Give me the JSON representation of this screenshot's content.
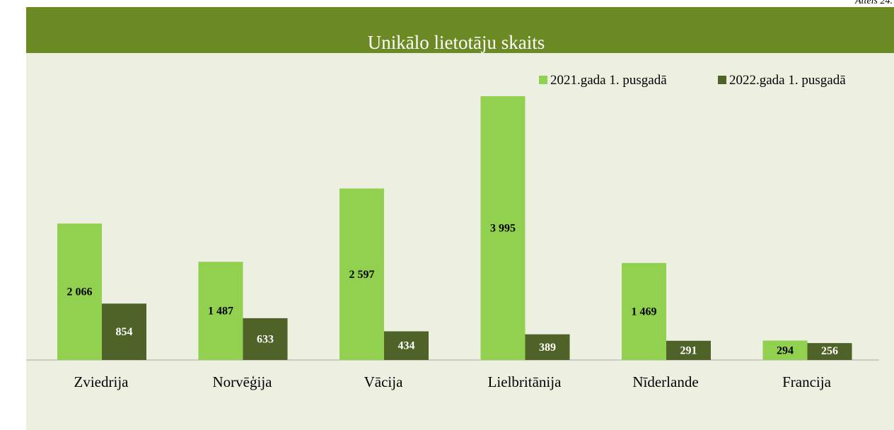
{
  "figure_label": "Attēls 24.",
  "chart_data": {
    "type": "bar",
    "title": "Unikālo lietotāju skaits",
    "categories": [
      "Zviedrija",
      "Norvēģija",
      "Vācija",
      "Lielbritānija",
      "Nīderlande",
      "Francija"
    ],
    "series": [
      {
        "name": "2021.gada 1. pusgadā",
        "color": "#92d050",
        "values": [
          2066,
          1487,
          2597,
          3995,
          1469,
          294
        ],
        "value_labels": [
          "2 066",
          "1 487",
          "2 597",
          "3 995",
          "1 469",
          "294"
        ]
      },
      {
        "name": "2022.gada 1. pusgadā",
        "color": "#4f6228",
        "values": [
          854,
          633,
          434,
          389,
          291,
          256
        ],
        "value_labels": [
          "854",
          "633",
          "434",
          "389",
          "291",
          "256"
        ]
      }
    ],
    "legend": "top-right",
    "grid": false
  }
}
